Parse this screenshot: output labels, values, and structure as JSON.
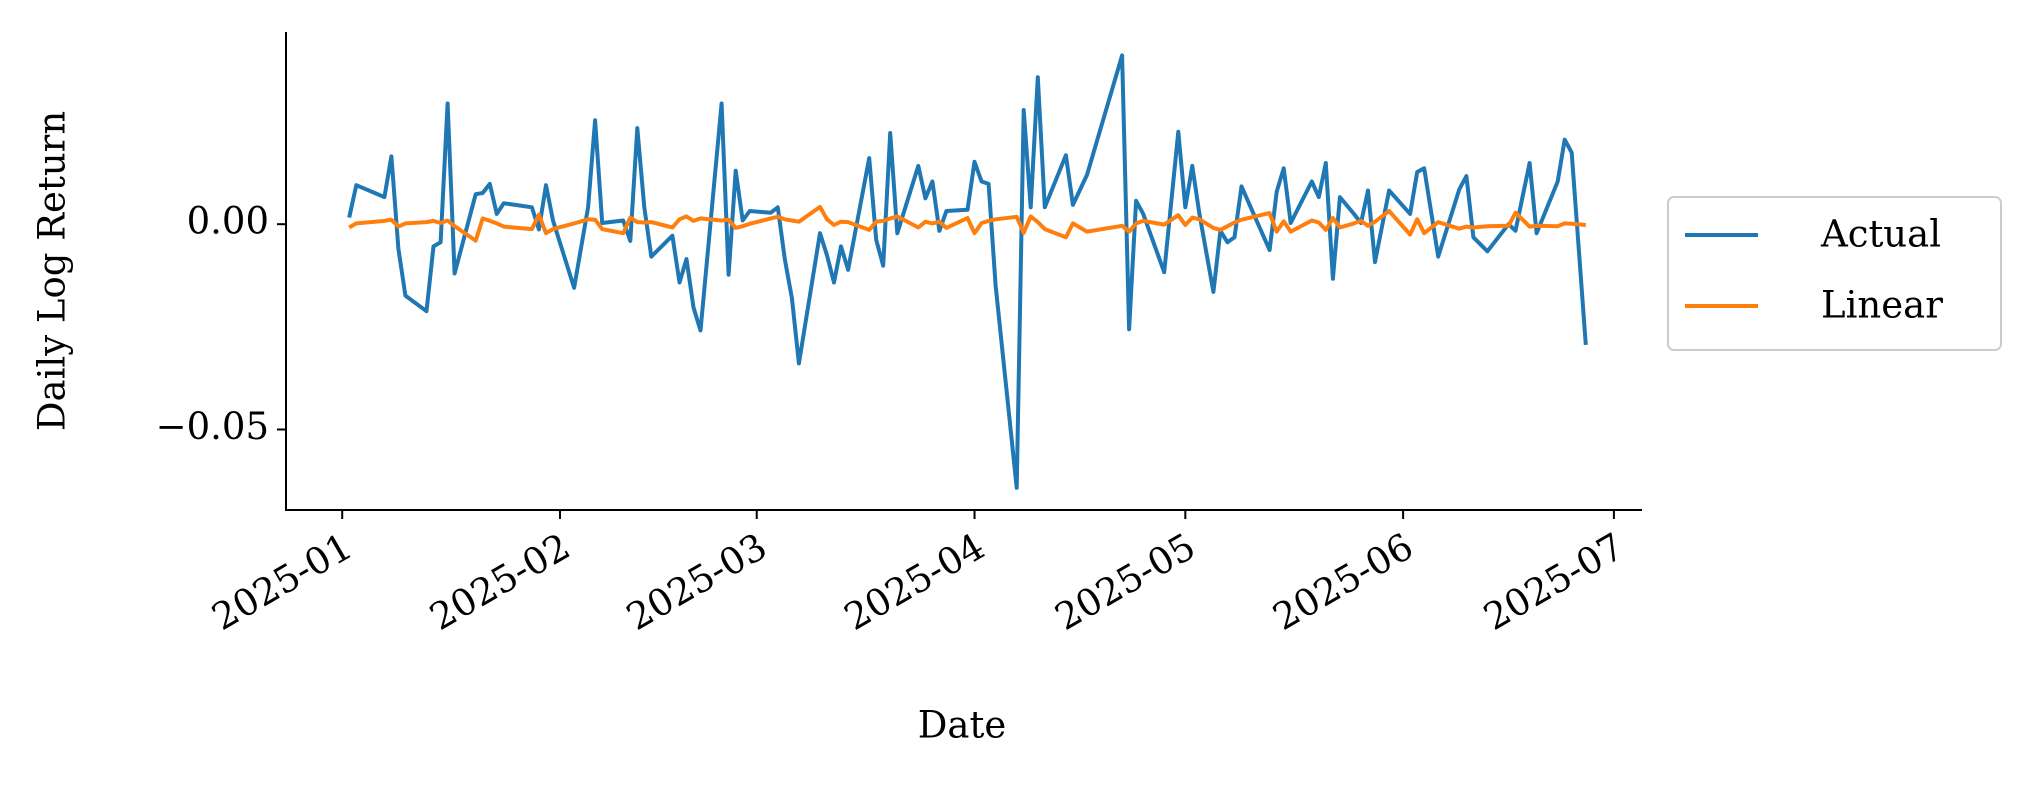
{
  "chart_data": {
    "type": "line",
    "xlabel": "Date",
    "ylabel": "Daily Log Return",
    "x": [
      "2025-01-02",
      "2025-01-03",
      "2025-01-07",
      "2025-01-08",
      "2025-01-09",
      "2025-01-10",
      "2025-01-13",
      "2025-01-14",
      "2025-01-15",
      "2025-01-16",
      "2025-01-17",
      "2025-01-20",
      "2025-01-21",
      "2025-01-22",
      "2025-01-23",
      "2025-01-24",
      "2025-01-28",
      "2025-01-29",
      "2025-01-30",
      "2025-01-31",
      "2025-02-03",
      "2025-02-05",
      "2025-02-06",
      "2025-02-07",
      "2025-02-10",
      "2025-02-11",
      "2025-02-12",
      "2025-02-13",
      "2025-02-14",
      "2025-02-17",
      "2025-02-18",
      "2025-02-19",
      "2025-02-20",
      "2025-02-21",
      "2025-02-24",
      "2025-02-25",
      "2025-02-26",
      "2025-02-27",
      "2025-02-28",
      "2025-03-03",
      "2025-03-04",
      "2025-03-05",
      "2025-03-06",
      "2025-03-07",
      "2025-03-10",
      "2025-03-11",
      "2025-03-12",
      "2025-03-13",
      "2025-03-14",
      "2025-03-17",
      "2025-03-18",
      "2025-03-19",
      "2025-03-20",
      "2025-03-21",
      "2025-03-24",
      "2025-03-25",
      "2025-03-26",
      "2025-03-27",
      "2025-03-28",
      "2025-03-31",
      "2025-04-01",
      "2025-04-02",
      "2025-04-03",
      "2025-04-04",
      "2025-04-07",
      "2025-04-08",
      "2025-04-09",
      "2025-04-10",
      "2025-04-11",
      "2025-04-14",
      "2025-04-15",
      "2025-04-17",
      "2025-04-22",
      "2025-04-23",
      "2025-04-24",
      "2025-04-25",
      "2025-04-28",
      "2025-04-30",
      "2025-05-01",
      "2025-05-02",
      "2025-05-03",
      "2025-05-05",
      "2025-05-06",
      "2025-05-07",
      "2025-05-08",
      "2025-05-09",
      "2025-05-13",
      "2025-05-14",
      "2025-05-15",
      "2025-05-16",
      "2025-05-19",
      "2025-05-20",
      "2025-05-21",
      "2025-05-22",
      "2025-05-23",
      "2025-05-25",
      "2025-05-26",
      "2025-05-27",
      "2025-05-28",
      "2025-05-30",
      "2025-06-02",
      "2025-06-03",
      "2025-06-04",
      "2025-06-06",
      "2025-06-09",
      "2025-06-10",
      "2025-06-11",
      "2025-06-13",
      "2025-06-16",
      "2025-06-17",
      "2025-06-19",
      "2025-06-20",
      "2025-06-23",
      "2025-06-24",
      "2025-06-25",
      "2025-06-27"
    ],
    "series": [
      {
        "name": "Actual",
        "color": "#1f77b4",
        "values": [
          0.0016,
          0.0095,
          0.0066,
          0.0165,
          -0.006,
          -0.0174,
          -0.0212,
          -0.0054,
          -0.0044,
          0.0294,
          -0.012,
          0.0073,
          0.0076,
          0.0098,
          0.0025,
          0.0051,
          0.0041,
          -0.0013,
          0.0095,
          0.0009,
          -0.0155,
          0.0041,
          0.0253,
          0.0003,
          0.0009,
          -0.0041,
          0.0234,
          0.0041,
          -0.0079,
          -0.0028,
          -0.0142,
          -0.0085,
          -0.0203,
          -0.0259,
          0.0294,
          -0.0123,
          0.013,
          0.0009,
          0.0032,
          0.0028,
          0.0041,
          -0.0085,
          -0.018,
          -0.0339,
          -0.0022,
          -0.0076,
          -0.0142,
          -0.0054,
          -0.0111,
          0.0161,
          -0.0038,
          -0.0101,
          0.0222,
          -0.0022,
          0.0142,
          0.0063,
          0.0104,
          -0.0016,
          0.0032,
          0.0035,
          0.0152,
          0.0104,
          0.0098,
          -0.0149,
          -0.0642,
          0.0278,
          0.0041,
          0.0358,
          0.0041,
          0.0168,
          0.0047,
          0.012,
          0.0411,
          -0.0256,
          0.0057,
          0.0025,
          -0.0117,
          0.0225,
          0.0041,
          0.0142,
          0.0025,
          -0.0165,
          -0.0016,
          -0.0044,
          -0.0032,
          0.0092,
          -0.0063,
          0.0079,
          0.0136,
          0.0003,
          0.0104,
          0.0066,
          0.0149,
          -0.0133,
          0.0066,
          0.0025,
          0.0003,
          0.0082,
          -0.0092,
          0.0082,
          0.0025,
          0.0127,
          0.0136,
          -0.0079,
          0.0085,
          0.0117,
          -0.0032,
          -0.0066,
          0,
          -0.0016,
          0.0149,
          -0.0022,
          0.0104,
          0.0206,
          0.0174,
          -0.0294
        ]
      },
      {
        "name": "Linear",
        "color": "#ff7f0e",
        "values": [
          -0.0008,
          0.0002,
          0.0008,
          0.0011,
          -0.0006,
          0.0002,
          0.0005,
          0.0008,
          0.0003,
          0.0009,
          -0.0005,
          -0.004,
          0.0014,
          0.0008,
          0.0002,
          -0.0006,
          -0.0012,
          0.0023,
          -0.0022,
          -0.0012,
          0.0002,
          0.0012,
          0.0011,
          -0.0012,
          -0.0022,
          0.0016,
          0.0005,
          0.0004,
          0.0005,
          -0.0008,
          0.0012,
          0.0019,
          0.0008,
          0.0014,
          0.0009,
          0.0011,
          -0.0009,
          -0.0005,
          0.0001,
          0.0014,
          0.0018,
          0.0012,
          0.0009,
          0.0006,
          0.0042,
          0.0012,
          -0.0002,
          0.0006,
          0.0005,
          -0.0014,
          0.0006,
          0.0008,
          0.0014,
          0.0019,
          -0.0008,
          0.0006,
          0.0002,
          0.0006,
          -0.0009,
          0.0015,
          -0.0022,
          0.0003,
          0.0008,
          0.0012,
          0.0018,
          -0.0021,
          0.0019,
          0.0005,
          -0.0012,
          -0.0032,
          0.0002,
          -0.0018,
          -0.0004,
          -0.0018,
          0.0002,
          0.0008,
          -0.0001,
          0.0022,
          -0.0002,
          0.0016,
          0.0012,
          -0.0009,
          -0.0014,
          -0.0005,
          0.0004,
          0.0011,
          0.0027,
          -0.0018,
          0.0007,
          -0.0018,
          0.0009,
          0.0004,
          -0.0014,
          0.0015,
          -0.0008,
          0.0002,
          0.0008,
          -0.0004,
          0.0006,
          0.0032,
          -0.0025,
          0.0012,
          -0.0022,
          0.0005,
          -0.0011,
          -0.0006,
          -0.0008,
          -0.0005,
          -0.0004,
          0.0028,
          -0.0006,
          -0.0004,
          -0.0005,
          0.0002,
          0.0001,
          -0.0002
        ]
      }
    ],
    "xlim": [
      "2024-12-24",
      "2025-07-05"
    ],
    "xticks": [
      "2025-01",
      "2025-02",
      "2025-03",
      "2025-04",
      "2025-05",
      "2025-06",
      "2025-07"
    ],
    "ylim": [
      -0.0696,
      0.0468
    ],
    "yticks": [
      {
        "value": -0.05,
        "label": "−0.05"
      },
      {
        "value": 0,
        "label": "0.00"
      }
    ],
    "grid": false,
    "legend": "right"
  }
}
